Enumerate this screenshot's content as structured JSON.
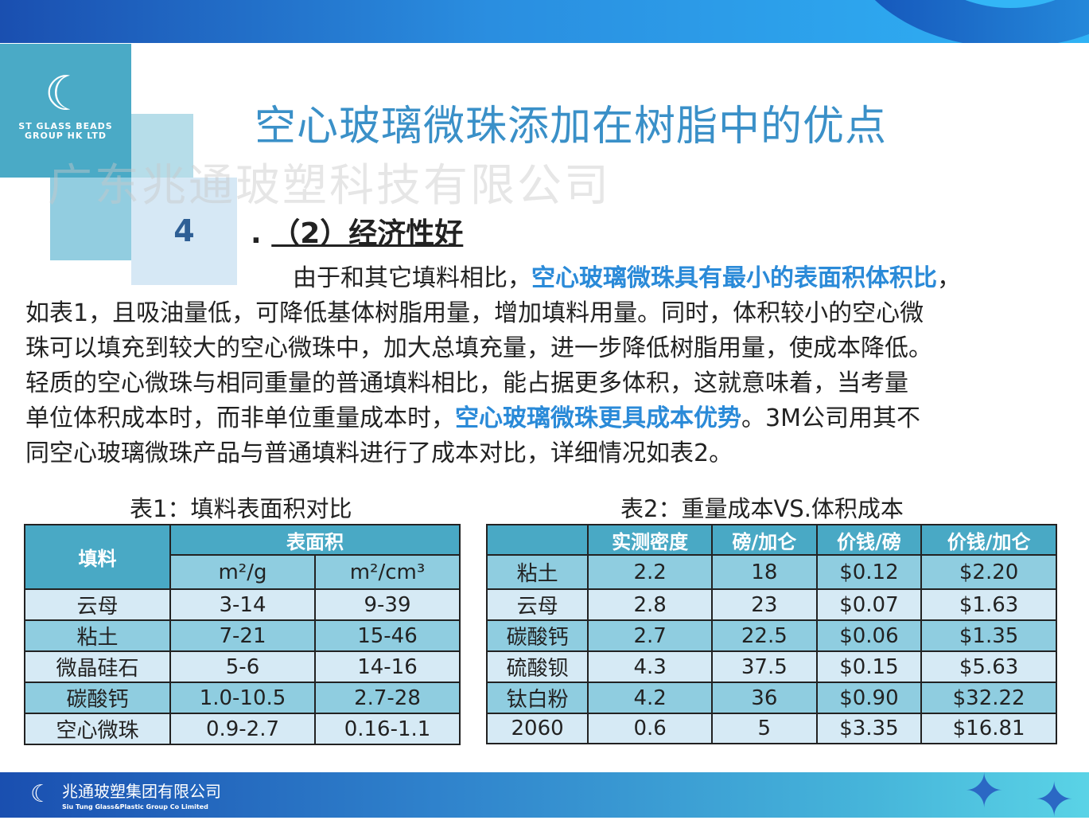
{
  "logo": {
    "mark": "☾",
    "line1": "ST GLASS BEADS",
    "line2": "GROUP HK LTD"
  },
  "section_number": "4",
  "title": "空心玻璃微珠添加在树脂中的优点",
  "watermark": "广东兆通玻塑科技有限公司",
  "subtitle": {
    "prefix": ".",
    "text": "（2）经济性好"
  },
  "body": {
    "l1a": "由于和其它填料相比，",
    "l1b": "空心玻璃微珠具有最小的表面积体积比",
    "l1c": "，",
    "l2": "如表1，且吸油量低，可降低基体树脂用量，增加填料用量。同时，体积较小的空心微",
    "l3": "珠可以填充到较大的空心微珠中，加大总填充量，进一步降低树脂用量，使成本降低。",
    "l4": "轻质的空心微珠与相同重量的普通填料相比，能占据更多体积，这就意味着，当考量",
    "l5a": "单位体积成本时，而非单位重量成本时，",
    "l5b": "空心玻璃微珠更具成本优势",
    "l5c": "。3M公司用其不",
    "l6": "同空心玻璃微珠产品与普通填料进行了成本对比，详细情况如表2。"
  },
  "table1": {
    "caption": "表1：填料表面积对比",
    "header": {
      "filler": "填料",
      "area": "表面积",
      "unit1": "m²/g",
      "unit2": "m²/cm³"
    },
    "rows": [
      [
        "云母",
        "3-14",
        "9-39"
      ],
      [
        "粘土",
        "7-21",
        "15-46"
      ],
      [
        "微晶硅石",
        "5-6",
        "14-16"
      ],
      [
        "碳酸钙",
        "1.0-10.5",
        "2.7-28"
      ],
      [
        "空心微珠",
        "0.9-2.7",
        "0.16-1.1"
      ]
    ]
  },
  "table2": {
    "caption": "表2：重量成本VS.体积成本",
    "header": [
      "",
      "实测密度",
      "磅/加仑",
      "价钱/磅",
      "价钱/加仑"
    ],
    "rows": [
      [
        "粘土",
        "2.2",
        "18",
        "$0.12",
        "$2.20"
      ],
      [
        "云母",
        "2.8",
        "23",
        "$0.07",
        "$1.63"
      ],
      [
        "碳酸钙",
        "2.7",
        "22.5",
        "$0.06",
        "$1.35"
      ],
      [
        "硫酸钡",
        "4.3",
        "37.5",
        "$0.15",
        "$5.63"
      ],
      [
        "钛白粉",
        "4.2",
        "36",
        "$0.90",
        "$32.22"
      ],
      [
        "2060",
        "0.6",
        "5",
        "$3.35",
        "$16.81"
      ]
    ]
  },
  "footer": {
    "company_cn": "兆通玻塑集团有限公司",
    "company_en": "Siu Tung Glass&Plastic Group Co Limited"
  },
  "colors": {
    "title": "#3a90c8",
    "highlight": "#2a8ad8",
    "table_header": "#49a9c5",
    "row_mid": "#8fcde0",
    "row_light": "#d6eaf5"
  }
}
